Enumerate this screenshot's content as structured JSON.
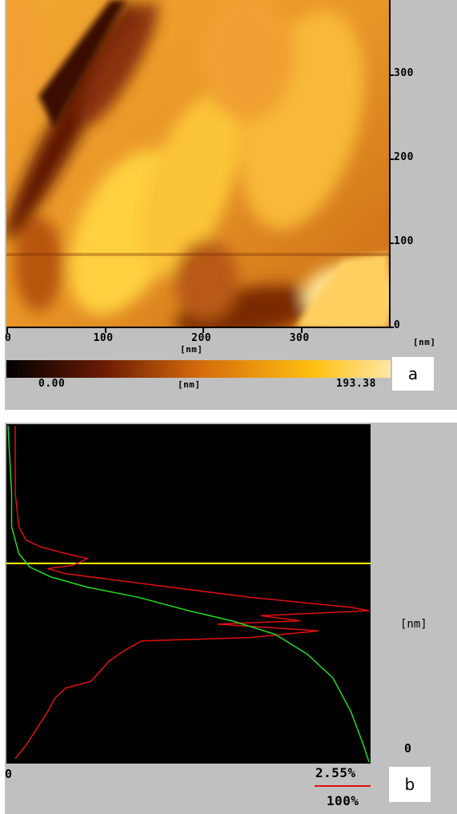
{
  "chart_data": [
    {
      "type": "heatmap",
      "panel_label": "a",
      "x_ticks": [
        "0",
        "100",
        "200",
        "300"
      ],
      "x_unit": "[nm]",
      "x_unit_right": "[nm]",
      "y_ticks": [
        "0",
        "100",
        "200",
        "300"
      ],
      "xlim": [
        0,
        390
      ],
      "ylim": [
        0,
        390
      ],
      "colorbar": {
        "min_label": "0.00",
        "max_label": "193.38",
        "unit": "[nm]",
        "min": 0.0,
        "max": 193.38
      },
      "colors": {
        "low": "#1a0500",
        "mid": "#d36a0c",
        "high": "#ffe7a5"
      }
    },
    {
      "type": "line",
      "panel_label": "b",
      "y_unit": "[nm]",
      "y_zero_label": "0",
      "x_zero_label": "0",
      "red_axis_label": "2.55%",
      "green_axis_label": "100%",
      "marker_line_fraction": 0.59,
      "series": [
        {
          "color": "#e01010",
          "x": [
            0.02,
            0.02,
            0.02,
            0.03,
            0.05,
            0.09,
            0.16,
            0.22,
            0.18,
            0.11,
            0.16,
            0.45,
            0.67,
            0.95,
            1.0,
            0.7,
            0.81,
            0.58,
            0.86,
            0.67,
            0.37,
            0.32,
            0.28,
            0.23,
            0.16,
            0.13,
            0.11,
            0.08,
            0.05,
            0.02
          ],
          "y": [
            1.0,
            0.9,
            0.8,
            0.7,
            0.66,
            0.64,
            0.62,
            0.605,
            0.585,
            0.575,
            0.56,
            0.52,
            0.49,
            0.46,
            0.45,
            0.435,
            0.42,
            0.41,
            0.39,
            0.37,
            0.36,
            0.33,
            0.3,
            0.24,
            0.22,
            0.19,
            0.15,
            0.1,
            0.05,
            0.01
          ]
        },
        {
          "color": "#22dd22",
          "x": [
            0.0,
            0.01,
            0.01,
            0.02,
            0.03,
            0.06,
            0.12,
            0.22,
            0.36,
            0.5,
            0.62,
            0.74,
            0.83,
            0.9,
            0.95,
            0.985,
            1.0
          ],
          "y": [
            1.0,
            0.8,
            0.7,
            0.66,
            0.62,
            0.58,
            0.55,
            0.52,
            0.49,
            0.45,
            0.42,
            0.38,
            0.32,
            0.25,
            0.15,
            0.05,
            0.0
          ]
        }
      ]
    }
  ]
}
